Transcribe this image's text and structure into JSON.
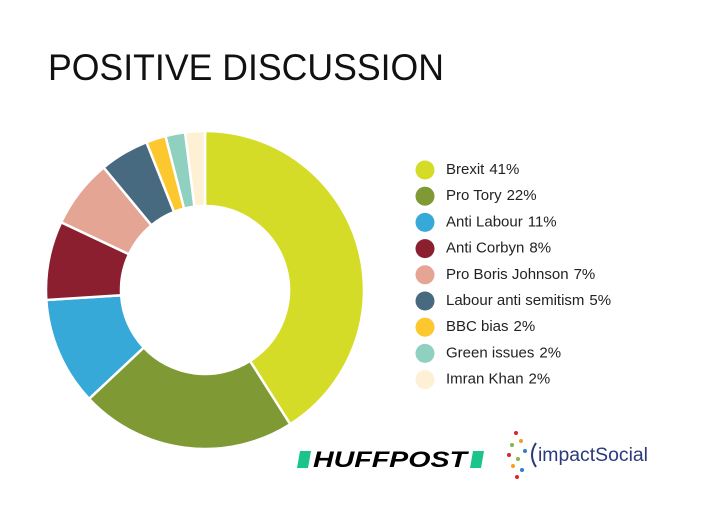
{
  "chart_data": {
    "type": "pie",
    "donut": true,
    "title": "POSITIVE DISCUSSION",
    "categories": [
      "Brexit",
      "Pro Tory",
      "Anti Labour",
      "Anti Corbyn",
      "Pro Boris Johnson",
      "Labour anti semitism",
      "BBC bias",
      "Green issues",
      "Imran Khan"
    ],
    "values": [
      41,
      22,
      11,
      8,
      7,
      5,
      2,
      2,
      2
    ],
    "value_labels": [
      "41%",
      "22%",
      "11%",
      "8%",
      "7%",
      "5%",
      "2%",
      "2%",
      "2%"
    ],
    "colors": [
      "#d4dc27",
      "#7f9a35",
      "#37a9d9",
      "#8b1f30",
      "#e5a594",
      "#476a80",
      "#fdc82f",
      "#8fd0c1",
      "#fdf0d4"
    ],
    "legend": "right"
  },
  "logos": [
    "HUFFPOST",
    "impactSocial"
  ]
}
